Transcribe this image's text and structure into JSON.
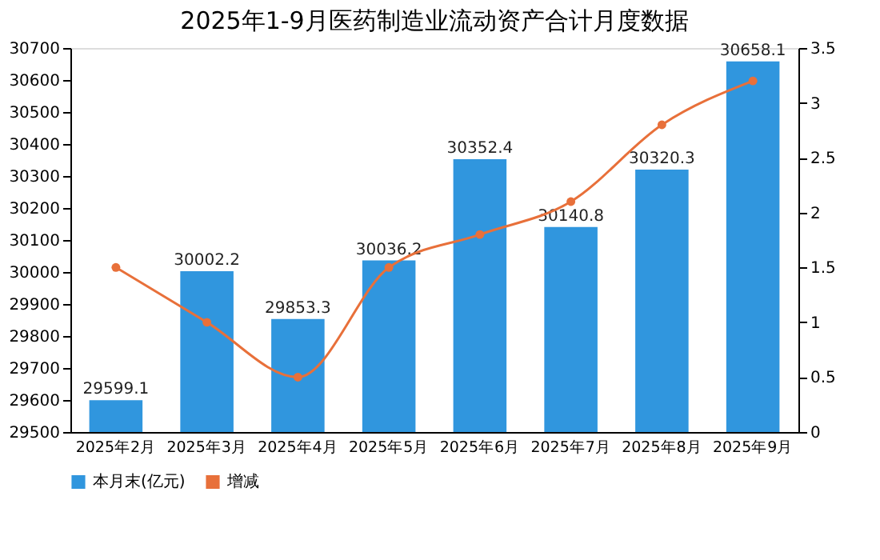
{
  "chart_data": {
    "type": "bar",
    "title": "2025年1-9月医药制造业流动资产合计月度数据",
    "categories": [
      "2025年2月",
      "2025年3月",
      "2025年4月",
      "2025年5月",
      "2025年6月",
      "2025年7月",
      "2025年8月",
      "2025年9月"
    ],
    "series": [
      {
        "name": "本月末(亿元)",
        "color": "#3096de",
        "values": [
          29599.1,
          30002.2,
          29853.3,
          30036.2,
          30352.4,
          30140.8,
          30320.3,
          30658.1
        ],
        "value_labels": [
          "29599.1",
          "30002.2",
          "29853.3",
          "30036.2",
          "30352.4",
          "30140.8",
          "30320.3",
          "30658.1"
        ]
      },
      {
        "name": "增减",
        "type": "line",
        "axis": "y2",
        "color": "#e8703a",
        "values": [
          1.5,
          1.0,
          0.5,
          1.5,
          1.8,
          2.1,
          2.8,
          3.2
        ]
      }
    ],
    "ylim": [
      29500,
      30700
    ],
    "yticks": [
      29500,
      29600,
      29700,
      29800,
      29900,
      30000,
      30100,
      30200,
      30300,
      30400,
      30500,
      30600,
      30700
    ],
    "y2lim": [
      0,
      3.5
    ],
    "y2ticks": [
      0,
      0.5,
      1,
      1.5,
      2,
      2.5,
      3,
      3.5
    ],
    "grid": false,
    "legend": "bottom left",
    "marker": "circle",
    "line_style": "solid"
  }
}
